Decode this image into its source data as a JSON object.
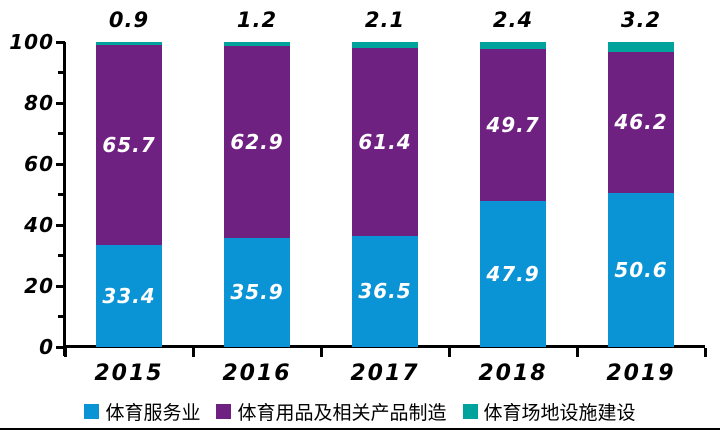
{
  "figure": {
    "background": "#ffffff",
    "bottom_rule_color": "#000000",
    "axis_color": "#000000",
    "text_color": "#000000"
  },
  "chart_data": {
    "type": "bar",
    "stacked": true,
    "title": "",
    "xlabel": "",
    "ylabel": "",
    "grid": false,
    "legend_position": "bottom",
    "ylim": [
      0,
      100
    ],
    "y_major_ticks": [
      0,
      20,
      40,
      60,
      80,
      100
    ],
    "y_minor_step": 10,
    "categories": [
      "2015",
      "2016",
      "2017",
      "2018",
      "2019"
    ],
    "series": [
      {
        "name": "体育服务业",
        "color": "#0a93d5",
        "values": [
          33.4,
          35.9,
          36.5,
          47.9,
          50.6
        ],
        "label_color": "#ffffff",
        "label_position": "inside"
      },
      {
        "name": "体育用品及相关产品制造",
        "color": "#6f2182",
        "values": [
          65.7,
          62.9,
          61.4,
          49.7,
          46.2
        ],
        "label_color": "#ffffff",
        "label_position": "inside"
      },
      {
        "name": "体育场地设施建设",
        "color": "#00a39c",
        "values": [
          0.9,
          1.2,
          2.1,
          2.4,
          3.2
        ],
        "label_color": "#000000",
        "label_position": "above"
      }
    ]
  }
}
